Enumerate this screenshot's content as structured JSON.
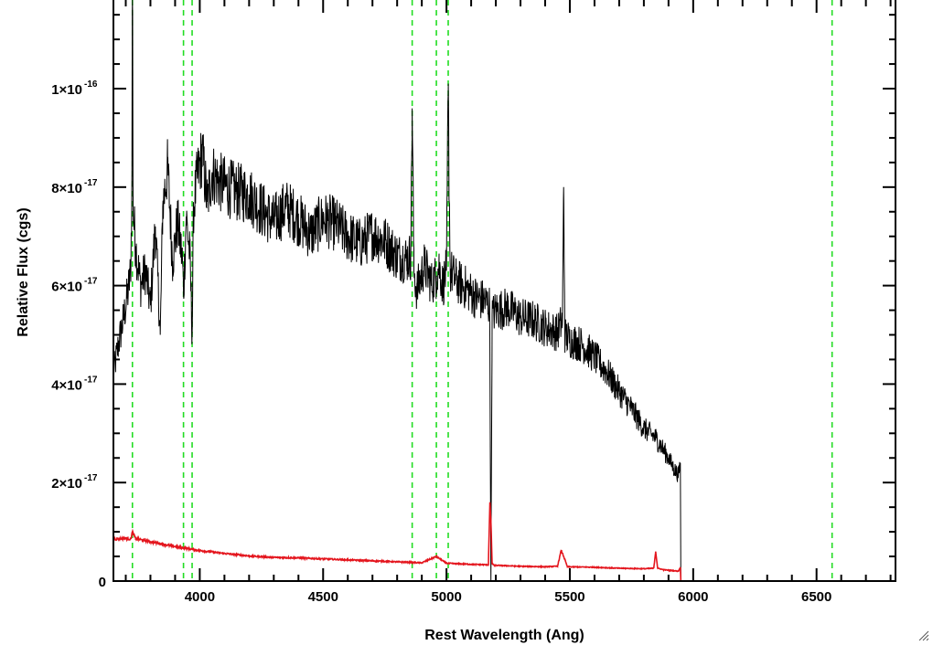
{
  "chart_data": {
    "type": "line",
    "title": "",
    "xlabel": "Rest Wavelength (Ang)",
    "ylabel": "Relative Flux (cgs)",
    "xlim": [
      3650,
      6820
    ],
    "ylim": [
      0,
      1.18e-16
    ],
    "x_ticks": [
      {
        "value": 4000,
        "label": "4000"
      },
      {
        "value": 4500,
        "label": "4500"
      },
      {
        "value": 5000,
        "label": "5000"
      },
      {
        "value": 5500,
        "label": "5500"
      },
      {
        "value": 6000,
        "label": "6000"
      },
      {
        "value": 6500,
        "label": "6500"
      }
    ],
    "y_ticks": [
      {
        "value": 0,
        "mantissa": "0",
        "exponent": ""
      },
      {
        "value": 2e-17,
        "mantissa": "2×10",
        "exponent": "-17"
      },
      {
        "value": 4e-17,
        "mantissa": "4×10",
        "exponent": "-17"
      },
      {
        "value": 6e-17,
        "mantissa": "6×10",
        "exponent": "-17"
      },
      {
        "value": 8e-17,
        "mantissa": "8×10",
        "exponent": "-17"
      },
      {
        "value": 1e-16,
        "mantissa": "1×10",
        "exponent": "-16"
      }
    ],
    "reference_lines_x": [
      3727,
      3934,
      3969,
      4861,
      4959,
      5007,
      6563
    ],
    "series": [
      {
        "color": "#000000",
        "x": [
          3650,
          3670,
          3690,
          3710,
          3720,
          3725,
          3727,
          3730,
          3740,
          3760,
          3780,
          3800,
          3820,
          3840,
          3850,
          3870,
          3890,
          3910,
          3930,
          3934,
          3945,
          3960,
          3969,
          3975,
          3990,
          4010,
          4030,
          4050,
          4080,
          4110,
          4150,
          4200,
          4250,
          4300,
          4350,
          4400,
          4450,
          4500,
          4550,
          4600,
          4650,
          4700,
          4750,
          4800,
          4840,
          4855,
          4861,
          4868,
          4880,
          4910,
          4940,
          4959,
          4970,
          4985,
          5000,
          5007,
          5015,
          5040,
          5080,
          5120,
          5150,
          5175,
          5180,
          5185,
          5200,
          5250,
          5300,
          5350,
          5400,
          5450,
          5470,
          5475,
          5480,
          5500,
          5550,
          5600,
          5650,
          5700,
          5750,
          5800,
          5850,
          5900,
          5920,
          5940,
          5948,
          5950,
          6000,
          6200,
          6400,
          6600,
          6820
        ],
        "y": [
          4.2e-17,
          4.8e-17,
          5.3e-17,
          5.9e-17,
          6.3e-17,
          8e-17,
          1.3e-16,
          7.5e-17,
          6.8e-17,
          6e-17,
          6.3e-17,
          5.6e-17,
          7.2e-17,
          5e-17,
          7.6e-17,
          8.4e-17,
          6.5e-17,
          7.3e-17,
          6.5e-17,
          5.8e-17,
          7.4e-17,
          6.6e-17,
          5e-17,
          7.6e-17,
          8.2e-17,
          8.7e-17,
          7.7e-17,
          8.3e-17,
          8.1e-17,
          8e-17,
          7.9e-17,
          7.85e-17,
          7.55e-17,
          7.3e-17,
          7.6e-17,
          7.35e-17,
          7.05e-17,
          7.35e-17,
          7.25e-17,
          7e-17,
          6.85e-17,
          7.05e-17,
          6.9e-17,
          6.6e-17,
          6.55e-17,
          6.6e-17,
          9.6e-17,
          6.3e-17,
          5.9e-17,
          6.4e-17,
          6.05e-17,
          6.2e-17,
          6.4e-17,
          6e-17,
          6.3e-17,
          9.9e-17,
          6.3e-17,
          6.1e-17,
          5.95e-17,
          5.75e-17,
          5.7e-17,
          5.6e-17,
          0.0,
          5.4e-17,
          5.5e-17,
          5.55e-17,
          5.35e-17,
          5.3e-17,
          5.15e-17,
          5.05e-17,
          5.3e-17,
          8e-17,
          5e-17,
          4.9e-17,
          4.8e-17,
          4.55e-17,
          4.25e-17,
          3.85e-17,
          3.5e-17,
          3.1e-17,
          2.9e-17,
          2.5e-17,
          2.3e-17,
          2.15e-17,
          2.4e-17,
          0.0,
          0.0,
          0.0,
          0.0,
          0.0,
          0.0
        ]
      },
      {
        "color": "#e4151d",
        "x": [
          3650,
          3700,
          3720,
          3727,
          3740,
          3800,
          3900,
          4000,
          4100,
          4200,
          4300,
          4400,
          4500,
          4600,
          4700,
          4800,
          4900,
          4959,
          5000,
          5100,
          5170,
          5176,
          5180,
          5185,
          5195,
          5300,
          5400,
          5450,
          5465,
          5475,
          5490,
          5600,
          5700,
          5800,
          5840,
          5848,
          5856,
          5880,
          5900,
          5940,
          5948,
          5950,
          6200,
          6500,
          6820
        ],
        "y": [
          8.5e-18,
          8.7e-18,
          8.5e-18,
          1e-17,
          8.6e-18,
          8e-18,
          7e-18,
          6.2e-18,
          5.6e-18,
          5.1e-18,
          4.8e-18,
          4.7e-18,
          4.5e-18,
          4.3e-18,
          4.1e-18,
          3.9e-18,
          3.7e-18,
          5e-18,
          3.6e-18,
          3.4e-18,
          3.3e-18,
          1.6e-17,
          1.2e-17,
          3.5e-18,
          3.2e-18,
          3e-18,
          2.9e-18,
          3e-18,
          6.2e-18,
          5e-18,
          2.9e-18,
          2.8e-18,
          2.6e-18,
          2.5e-18,
          2.6e-18,
          6e-18,
          2.6e-18,
          2.3e-18,
          2.2e-18,
          2e-18,
          2.8e-18,
          0.0,
          0.0,
          0.0,
          0.0
        ]
      }
    ],
    "reference_line_color": "#22dd22",
    "grid": false,
    "legend": "none"
  }
}
